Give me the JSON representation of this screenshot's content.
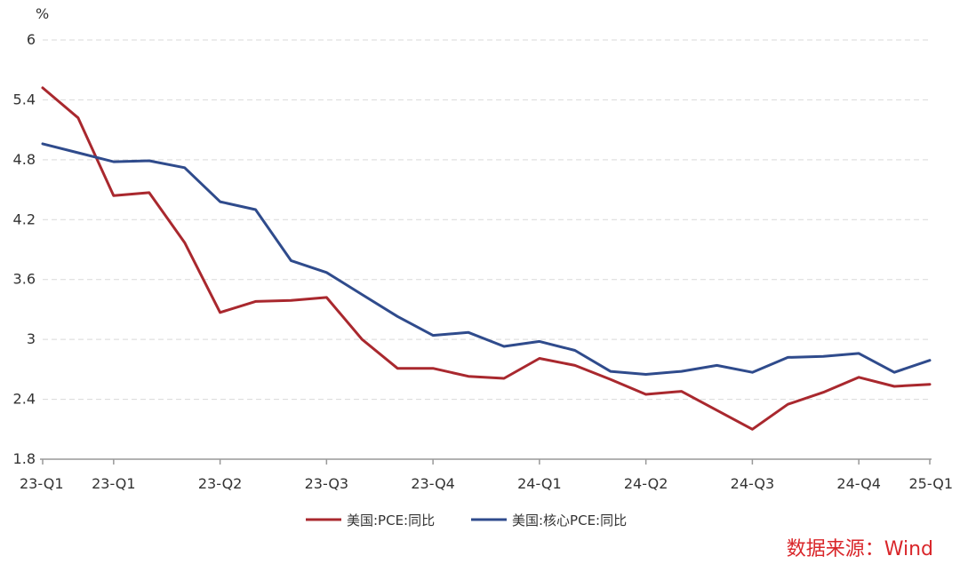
{
  "chart_data": {
    "type": "line",
    "unit_label": "%",
    "x_tick_labels": [
      "23-Q1",
      "23-Q1",
      "23-Q2",
      "23-Q3",
      "23-Q4",
      "24-Q1",
      "24-Q2",
      "24-Q3",
      "24-Q4",
      "25-Q1"
    ],
    "x_tick_index": [
      0,
      2,
      5,
      8,
      11,
      14,
      17,
      20,
      23,
      25
    ],
    "ylim": [
      1.8,
      6
    ],
    "yticks": [
      1.8,
      2.4,
      3,
      3.6,
      4.2,
      4.8,
      5.4,
      6
    ],
    "ytick_labels": [
      "1.8",
      "2.4",
      "3",
      "3.6",
      "4.2",
      "4.8",
      "5.4",
      "6"
    ],
    "grid": true,
    "legend_position": "bottom",
    "series": [
      {
        "name": "美国:PCE:同比",
        "color": "#a9282e",
        "values": [
          5.52,
          5.22,
          4.44,
          4.47,
          3.97,
          3.27,
          3.38,
          3.39,
          3.42,
          3.0,
          2.71,
          2.71,
          2.63,
          2.61,
          2.81,
          2.74,
          2.6,
          2.45,
          2.48,
          2.29,
          2.1,
          2.35,
          2.47,
          2.62,
          2.53,
          2.55
        ]
      },
      {
        "name": "美国:核心PCE:同比",
        "color": "#2f4b8c",
        "values": [
          4.96,
          4.87,
          4.78,
          4.79,
          4.72,
          4.38,
          4.3,
          3.79,
          3.67,
          3.45,
          3.23,
          3.04,
          3.07,
          2.93,
          2.98,
          2.89,
          2.68,
          2.65,
          2.68,
          2.74,
          2.67,
          2.82,
          2.83,
          2.86,
          2.67,
          2.79
        ]
      }
    ]
  },
  "source": "数据来源：Wind"
}
